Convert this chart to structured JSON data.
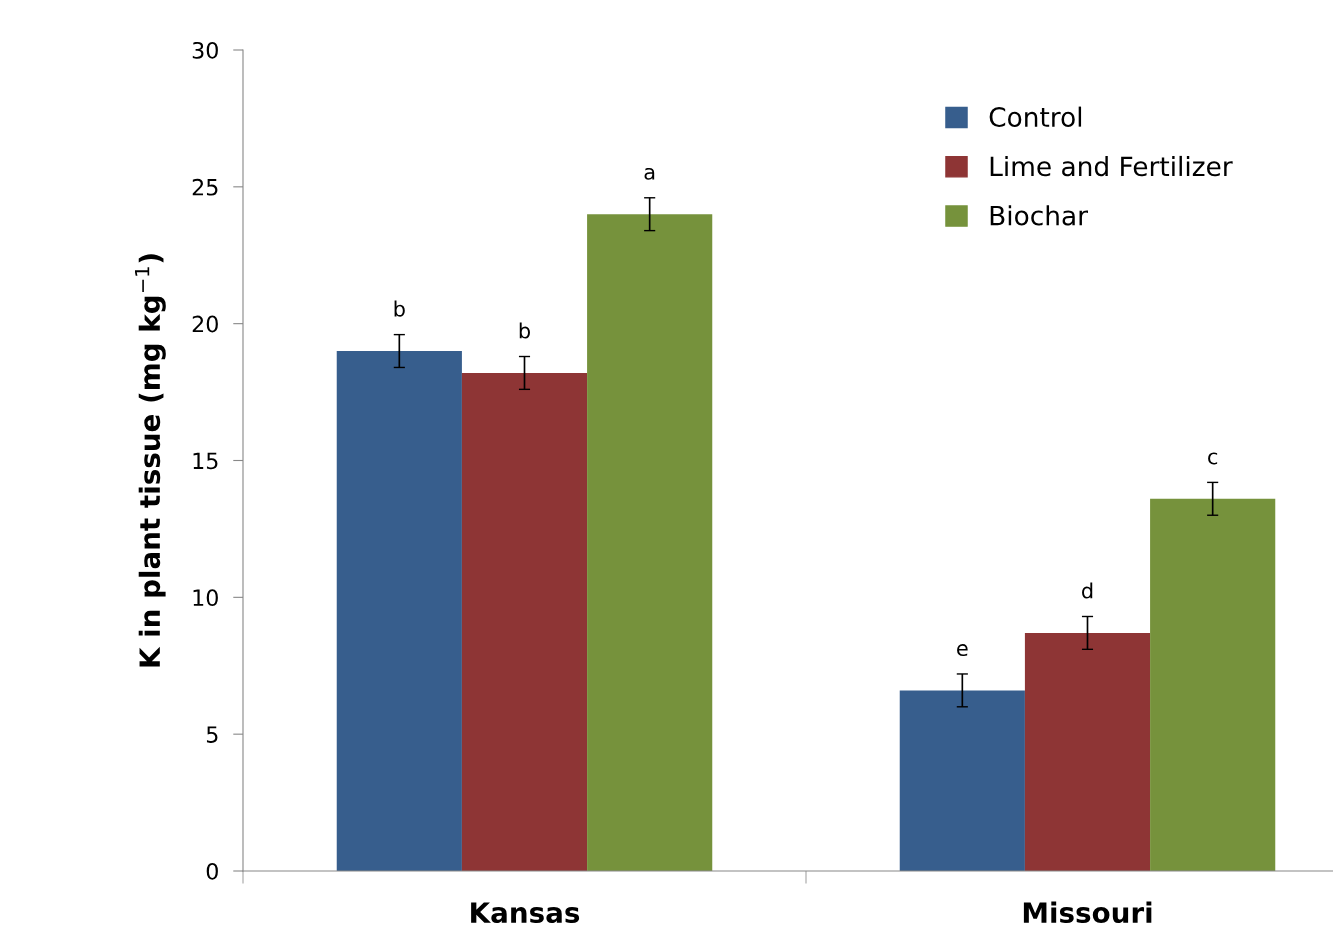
{
  "chart_data": {
    "type": "bar",
    "ylabel": "K in plant tissue (mg kg$^{−1}$)",
    "categories": [
      "Kansas",
      "Missouri"
    ],
    "series": [
      {
        "name": "Control",
        "color": "#375e8d",
        "values": [
          19.0,
          6.6
        ],
        "errors": [
          0.6,
          0.6
        ],
        "value_labels": [
          "b",
          "e"
        ]
      },
      {
        "name": "Lime and Fertilizer",
        "color": "#8e3535",
        "values": [
          18.2,
          8.7
        ],
        "errors": [
          0.6,
          0.6
        ],
        "value_labels": [
          "b",
          "d"
        ]
      },
      {
        "name": "Biochar",
        "color": "#76923c",
        "values": [
          24.0,
          13.6
        ],
        "errors": [
          0.6,
          0.6
        ],
        "value_labels": [
          "a",
          "c"
        ]
      }
    ],
    "ylim": [
      0,
      30
    ],
    "yticks": [
      0,
      5,
      10,
      15,
      20,
      25,
      30
    ],
    "grid": false,
    "legend": "top right"
  }
}
